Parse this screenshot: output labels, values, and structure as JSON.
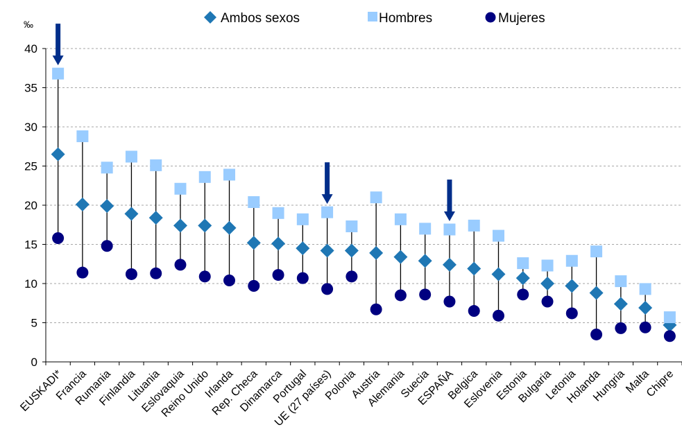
{
  "chart_data": {
    "type": "scatter",
    "unit": "‰",
    "ylim": [
      0,
      40
    ],
    "yticks": [
      0,
      5,
      10,
      15,
      20,
      25,
      30,
      35,
      40
    ],
    "grid": true,
    "legend_position": "top",
    "categories": [
      "EUSKADI*",
      "Francia",
      "Rumania",
      "Finlandia",
      "Lituania",
      "Eslovaquia",
      "Reino Unido",
      "Irlanda",
      "Rep. Checa",
      "Dinamarca",
      "Portugal",
      "UE (27 países)",
      "Polonia",
      "Austria",
      "Alemania",
      "Suecia",
      "ESPAÑA",
      "Belgica",
      "Eslovenia",
      "Estonia",
      "Bulgaria",
      "Letonia",
      "Holanda",
      "Hungria",
      "Malta",
      "Chipre"
    ],
    "series": [
      {
        "name": "Ambos sexos",
        "marker": "diamond",
        "color": "#1f77b4",
        "values": [
          26.5,
          20.1,
          19.9,
          18.9,
          18.4,
          17.4,
          17.4,
          17.1,
          15.2,
          15.1,
          14.5,
          14.2,
          14.2,
          13.9,
          13.4,
          12.9,
          12.4,
          11.9,
          11.2,
          10.7,
          10.0,
          9.7,
          8.8,
          7.4,
          6.9,
          4.7
        ]
      },
      {
        "name": "Hombres",
        "marker": "square",
        "color": "#99ccff",
        "values": [
          36.8,
          28.8,
          24.8,
          26.2,
          25.1,
          22.1,
          23.6,
          23.9,
          20.4,
          19.0,
          18.2,
          19.1,
          17.3,
          21.0,
          18.2,
          17.0,
          16.9,
          17.4,
          16.1,
          12.6,
          12.3,
          12.9,
          14.1,
          10.3,
          9.3,
          5.7
        ]
      },
      {
        "name": "Mujeres",
        "marker": "circle",
        "color": "#000080",
        "values": [
          15.8,
          11.4,
          14.8,
          11.2,
          11.3,
          12.4,
          10.9,
          10.4,
          9.7,
          11.1,
          10.7,
          9.3,
          10.9,
          6.7,
          8.5,
          8.6,
          7.7,
          6.5,
          5.9,
          8.6,
          7.7,
          6.2,
          3.5,
          4.3,
          4.4,
          3.3
        ]
      }
    ],
    "annotations": [
      {
        "type": "arrow",
        "category": "EUSKADI*",
        "color": "#002e8a"
      },
      {
        "type": "arrow",
        "category": "UE (27 países)",
        "color": "#002e8a"
      },
      {
        "type": "arrow",
        "category": "ESPAÑA",
        "color": "#002e8a"
      }
    ]
  }
}
